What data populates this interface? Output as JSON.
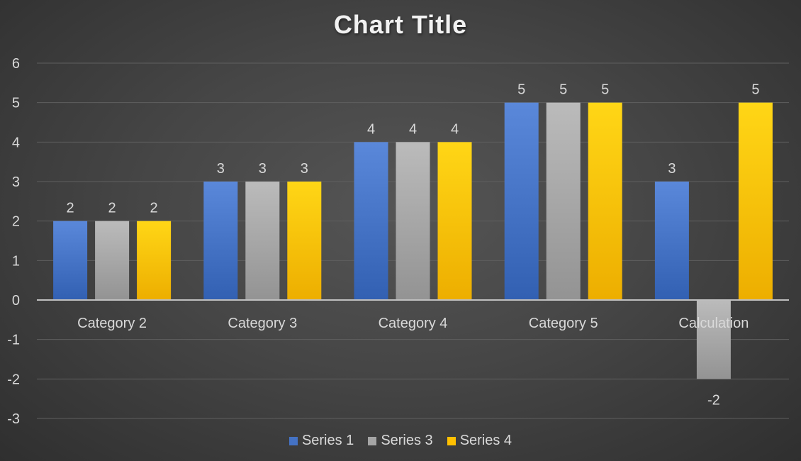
{
  "chart_data": {
    "type": "bar",
    "title": "Chart Title",
    "categories": [
      "Category 2",
      "Category 3",
      "Category 4",
      "Category 5",
      "Calculation"
    ],
    "series": [
      {
        "name": "Series 1",
        "values": [
          2,
          3,
          4,
          5,
          3
        ],
        "color": "#4472C4"
      },
      {
        "name": "Series 3",
        "values": [
          2,
          3,
          4,
          5,
          -2
        ],
        "color": "#A5A5A5"
      },
      {
        "name": "Series 4",
        "values": [
          2,
          3,
          4,
          5,
          5
        ],
        "color": "#FFC000"
      }
    ],
    "ylim": [
      -3,
      6
    ],
    "yticks": [
      6,
      5,
      4,
      3,
      2,
      1,
      0,
      -1,
      -2,
      -3
    ],
    "grid": true,
    "data_labels": true,
    "legend_position": "bottom",
    "background": "#404040"
  }
}
